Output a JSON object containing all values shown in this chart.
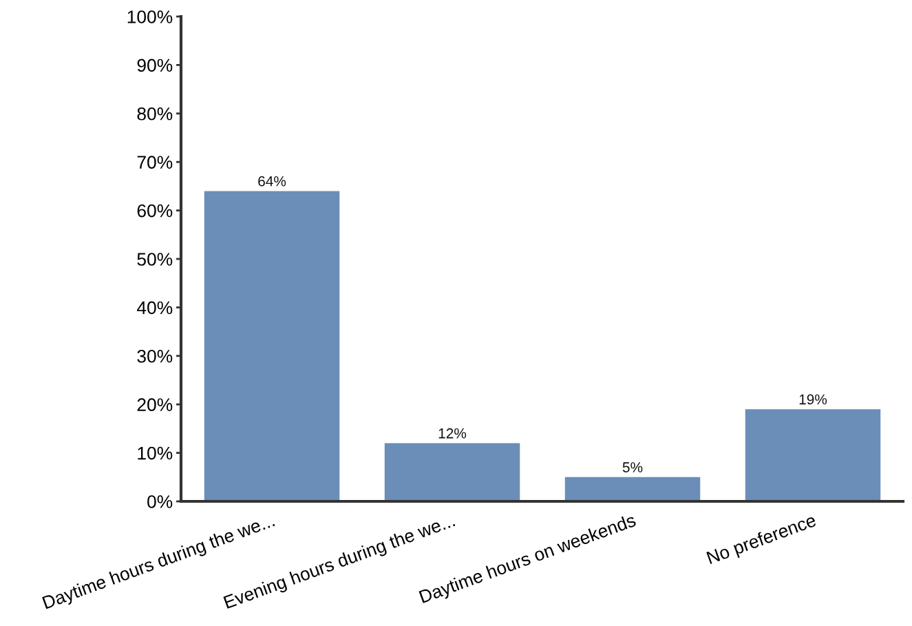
{
  "chart_data": {
    "type": "bar",
    "categories": [
      "Daytime hours during the we...",
      "Evening hours during the we...",
      "Daytime hours on weekends",
      "No preference"
    ],
    "values": [
      64,
      12,
      5,
      19
    ],
    "value_labels": [
      "64%",
      "12%",
      "5%",
      "19%"
    ],
    "color": "#6a8eb8",
    "ylim": [
      0,
      100
    ],
    "yticks": [
      {
        "value": 0,
        "label": "0%"
      },
      {
        "value": 10,
        "label": "10%"
      },
      {
        "value": 20,
        "label": "20%"
      },
      {
        "value": 30,
        "label": "30%"
      },
      {
        "value": 40,
        "label": "40%"
      },
      {
        "value": 50,
        "label": "50%"
      },
      {
        "value": 60,
        "label": "60%"
      },
      {
        "value": 70,
        "label": "70%"
      },
      {
        "value": 80,
        "label": "80%"
      },
      {
        "value": 90,
        "label": "90%"
      },
      {
        "value": 100,
        "label": "100%"
      }
    ],
    "grid": false,
    "legend": false
  }
}
